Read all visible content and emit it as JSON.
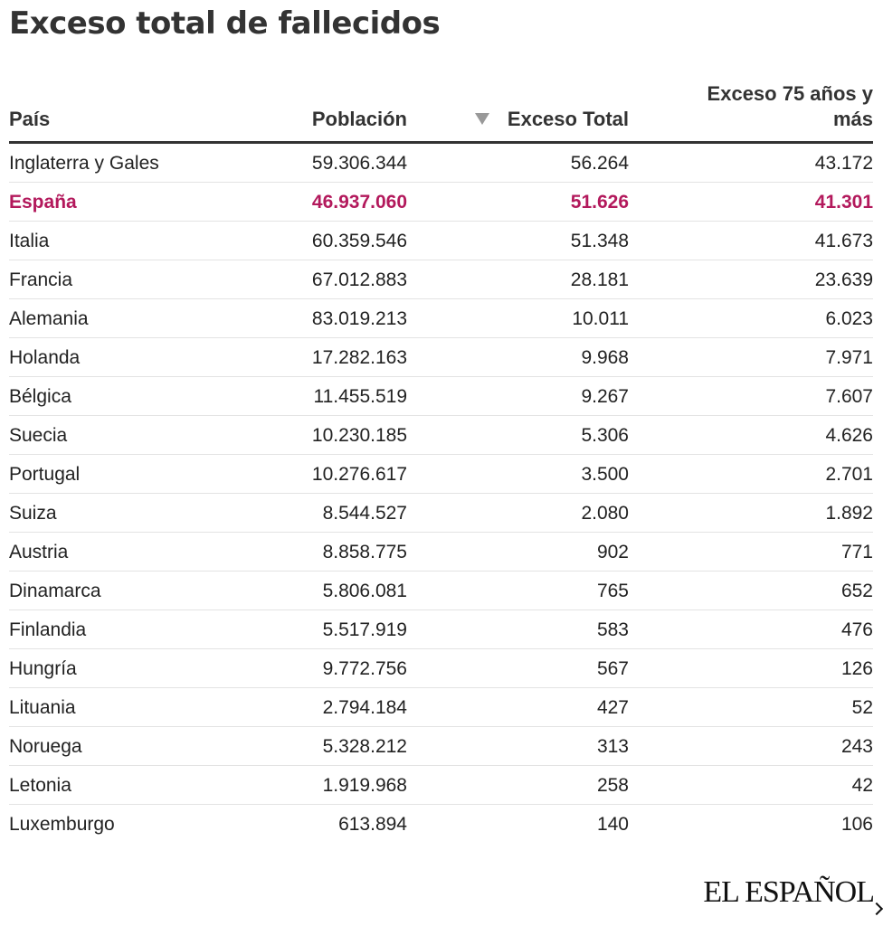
{
  "title": "Exceso total de fallecidos",
  "logo": "EL ESPAÑOL",
  "colors": {
    "highlight": "#b3195c",
    "text": "#222222",
    "rule": "#333333"
  },
  "chart_data": {
    "type": "table",
    "title": "Exceso total de fallecidos",
    "columns": [
      "País",
      "Población",
      "Exceso Total",
      "Exceso 75 años y más"
    ],
    "sorted_by": "Exceso Total",
    "sort_direction": "descending",
    "highlighted_row": "España",
    "rows": [
      [
        "Inglaterra y Gales",
        "59.306.344",
        "56.264",
        "43.172"
      ],
      [
        "España",
        "46.937.060",
        "51.626",
        "41.301"
      ],
      [
        "Italia",
        "60.359.546",
        "51.348",
        "41.673"
      ],
      [
        "Francia",
        "67.012.883",
        "28.181",
        "23.639"
      ],
      [
        "Alemania",
        "83.019.213",
        "10.011",
        "6.023"
      ],
      [
        "Holanda",
        "17.282.163",
        "9.968",
        "7.971"
      ],
      [
        "Bélgica",
        "11.455.519",
        "9.267",
        "7.607"
      ],
      [
        "Suecia",
        "10.230.185",
        "5.306",
        "4.626"
      ],
      [
        "Portugal",
        "10.276.617",
        "3.500",
        "2.701"
      ],
      [
        "Suiza",
        "8.544.527",
        "2.080",
        "1.892"
      ],
      [
        "Austria",
        "8.858.775",
        "902",
        "771"
      ],
      [
        "Dinamarca",
        "5.806.081",
        "765",
        "652"
      ],
      [
        "Finlandia",
        "5.517.919",
        "583",
        "476"
      ],
      [
        "Hungría",
        "9.772.756",
        "567",
        "126"
      ],
      [
        "Lituania",
        "2.794.184",
        "427",
        "52"
      ],
      [
        "Noruega",
        "5.328.212",
        "313",
        "243"
      ],
      [
        "Letonia",
        "1.919.968",
        "258",
        "42"
      ],
      [
        "Luxemburgo",
        "613.894",
        "140",
        "106"
      ]
    ]
  }
}
